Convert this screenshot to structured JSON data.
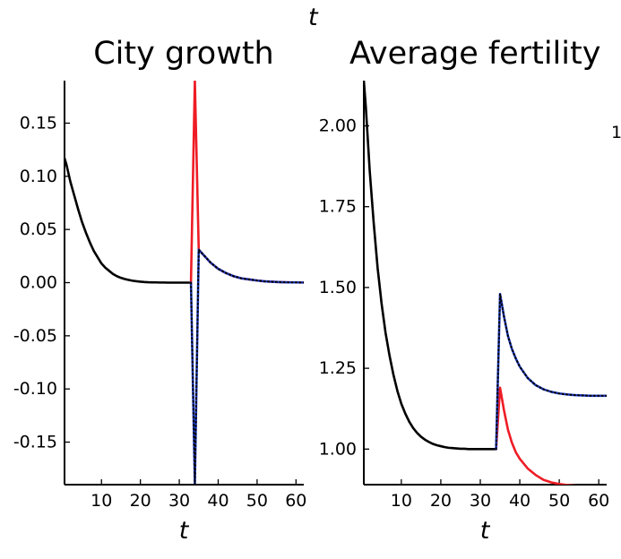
{
  "top_label": "t",
  "clipped_right_label": "1",
  "colors": {
    "baseline": "#000000",
    "red_series": "#ee1c25",
    "blue_series": "#1f3fcc",
    "dotted_overlay": "#000000"
  },
  "chart_data": [
    {
      "type": "line",
      "title": "City growth",
      "xlabel": "t",
      "ylabel": "",
      "xlim": [
        0.5,
        62
      ],
      "ylim": [
        -0.19,
        0.19
      ],
      "xticks": [
        10,
        20,
        30,
        40,
        50,
        60
      ],
      "xtick_labels": [
        "10",
        "20",
        "30",
        "40",
        "50",
        "60"
      ],
      "yticks": [
        0.15,
        0.1,
        0.05,
        0.0,
        -0.05,
        -0.1,
        -0.15
      ],
      "ytick_labels": [
        "0.15",
        "0.10",
        "0.05",
        "0.00",
        "-0.05",
        "-0.10",
        "-0.15"
      ],
      "grid": false,
      "legend": "none",
      "series": [
        {
          "color_key": "baseline",
          "style": "solid",
          "x": [
            0.5,
            1,
            2,
            3,
            4,
            5,
            6,
            7,
            8,
            9,
            10,
            11,
            12,
            13,
            14,
            15,
            16,
            17,
            18,
            19,
            20,
            21,
            22,
            23,
            24,
            25,
            26,
            27,
            28,
            29,
            30,
            31,
            32,
            33
          ],
          "y": [
            0.117,
            0.111,
            0.095,
            0.082,
            0.069,
            0.057,
            0.047,
            0.038,
            0.03,
            0.024,
            0.018,
            0.014,
            0.011,
            0.008,
            0.006,
            0.0045,
            0.0034,
            0.0025,
            0.0018,
            0.0013,
            0.0009,
            0.0006,
            0.0004,
            0.0003,
            0.0002,
            0.0001,
            0.0001,
            0.0,
            0.0,
            0.0,
            0.0,
            0.0,
            0.0,
            0.0
          ]
        },
        {
          "color_key": "red_series",
          "style": "solid",
          "x": [
            33,
            34,
            35,
            36,
            37,
            38,
            40,
            42,
            44,
            46,
            48,
            50,
            52,
            54,
            56,
            58,
            60,
            62
          ],
          "y": [
            0.0,
            0.19,
            0.031,
            0.027,
            0.023,
            0.019,
            0.013,
            0.009,
            0.006,
            0.004,
            0.003,
            0.002,
            0.0012,
            0.0008,
            0.0005,
            0.0003,
            0.0002,
            0.0001
          ]
        },
        {
          "color_key": "blue_series",
          "style": "solid",
          "x": [
            33,
            34,
            35,
            36,
            37,
            38,
            40,
            42,
            44,
            46,
            48,
            50,
            52,
            54,
            56,
            58,
            60,
            62
          ],
          "y": [
            0.0,
            -0.19,
            0.031,
            0.027,
            0.023,
            0.019,
            0.013,
            0.009,
            0.006,
            0.004,
            0.003,
            0.002,
            0.0012,
            0.0008,
            0.0005,
            0.0003,
            0.0002,
            0.0001
          ]
        },
        {
          "color_key": "dotted_overlay",
          "style": "dotted",
          "x": [
            33,
            34,
            35,
            36,
            37,
            38,
            40,
            42,
            44,
            46,
            48,
            50,
            52,
            54,
            56,
            58,
            60,
            62
          ],
          "y": [
            0.0,
            -0.19,
            0.031,
            0.027,
            0.023,
            0.019,
            0.013,
            0.009,
            0.006,
            0.004,
            0.003,
            0.002,
            0.0012,
            0.0008,
            0.0005,
            0.0003,
            0.0002,
            0.0001
          ]
        }
      ]
    },
    {
      "type": "line",
      "title": "Average fertility",
      "xlabel": "t",
      "ylabel": "",
      "xlim": [
        0.5,
        62
      ],
      "ylim": [
        0.89,
        2.14
      ],
      "xticks": [
        10,
        20,
        30,
        40,
        50,
        60
      ],
      "xtick_labels": [
        "10",
        "20",
        "30",
        "40",
        "50",
        "60"
      ],
      "yticks": [
        2.0,
        1.75,
        1.5,
        1.25,
        1.0
      ],
      "ytick_labels": [
        "2.00",
        "1.75",
        "1.50",
        "1.25",
        "1.00"
      ],
      "grid": false,
      "legend": "none",
      "series": [
        {
          "color_key": "baseline",
          "style": "solid",
          "x": [
            0.5,
            1,
            2,
            3,
            4,
            5,
            6,
            7,
            8,
            9,
            10,
            11,
            12,
            13,
            14,
            15,
            16,
            17,
            18,
            19,
            20,
            21,
            22,
            23,
            24,
            25,
            26,
            27,
            28,
            29,
            30,
            31,
            32,
            33,
            34
          ],
          "y": [
            2.14,
            2.06,
            1.86,
            1.7,
            1.56,
            1.45,
            1.36,
            1.29,
            1.23,
            1.18,
            1.14,
            1.11,
            1.085,
            1.065,
            1.05,
            1.038,
            1.029,
            1.022,
            1.016,
            1.012,
            1.009,
            1.006,
            1.004,
            1.003,
            1.002,
            1.001,
            1.001,
            1.0,
            1.0,
            1.0,
            1.0,
            1.0,
            1.0,
            1.0,
            1.0
          ]
        },
        {
          "color_key": "red_series",
          "style": "solid",
          "x": [
            34,
            35,
            36,
            37,
            38,
            39,
            40,
            42,
            44,
            46,
            48,
            50,
            52,
            54,
            56,
            58,
            60,
            62
          ],
          "y": [
            1.0,
            1.19,
            1.12,
            1.06,
            1.02,
            0.99,
            0.97,
            0.94,
            0.92,
            0.905,
            0.897,
            0.892,
            0.889,
            0.887,
            0.886,
            0.885,
            0.885,
            0.885
          ]
        },
        {
          "color_key": "blue_series",
          "style": "solid",
          "x": [
            34,
            35,
            36,
            37,
            38,
            39,
            40,
            42,
            44,
            46,
            48,
            50,
            52,
            54,
            56,
            58,
            60,
            62
          ],
          "y": [
            1.0,
            1.48,
            1.41,
            1.35,
            1.31,
            1.28,
            1.255,
            1.22,
            1.198,
            1.185,
            1.177,
            1.172,
            1.169,
            1.167,
            1.166,
            1.165,
            1.165,
            1.165
          ]
        },
        {
          "color_key": "dotted_overlay",
          "style": "dotted",
          "x": [
            34,
            35,
            36,
            37,
            38,
            39,
            40,
            42,
            44,
            46,
            48,
            50,
            52,
            54,
            56,
            58,
            60,
            62
          ],
          "y": [
            1.0,
            1.48,
            1.41,
            1.35,
            1.31,
            1.28,
            1.255,
            1.22,
            1.198,
            1.185,
            1.177,
            1.172,
            1.169,
            1.167,
            1.166,
            1.165,
            1.165,
            1.165
          ]
        }
      ]
    }
  ]
}
